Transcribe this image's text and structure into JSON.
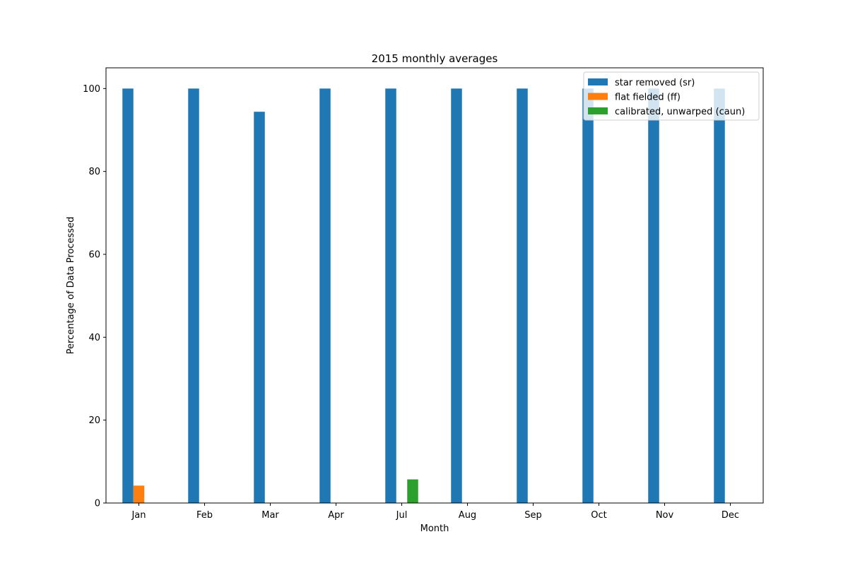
{
  "chart_data": {
    "type": "bar",
    "title": "2015 monthly averages",
    "xlabel": "Month",
    "ylabel": "Percentage of Data Processed",
    "categories": [
      "Jan",
      "Feb",
      "Mar",
      "Apr",
      "Jul",
      "Aug",
      "Sep",
      "Oct",
      "Nov",
      "Dec"
    ],
    "series": [
      {
        "name": "star removed (sr)",
        "color": "#1f77b4",
        "values": [
          100,
          100,
          94.4,
          100,
          100,
          100,
          100,
          100,
          100,
          100
        ]
      },
      {
        "name": "flat fielded (ff)",
        "color": "#ff7f0e",
        "values": [
          4.2,
          0,
          0,
          0,
          0,
          0,
          0,
          0,
          0,
          0
        ]
      },
      {
        "name": "calibrated, unwarped (caun)",
        "color": "#2ca02c",
        "values": [
          0,
          0,
          0,
          0,
          5.7,
          0,
          0,
          0,
          0,
          0
        ]
      }
    ],
    "ylim": [
      0,
      105
    ],
    "yticks": [
      0,
      20,
      40,
      60,
      80,
      100
    ],
    "grid": false,
    "legend_position": "top-right"
  }
}
